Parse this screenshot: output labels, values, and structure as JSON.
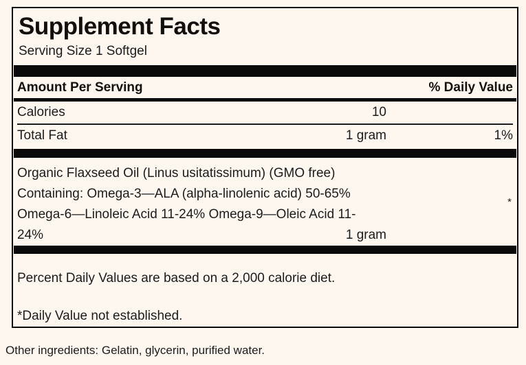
{
  "panel": {
    "title": "Supplement Facts",
    "serving_size": "Serving Size 1 Softgel",
    "header": {
      "amount_per_serving": "Amount Per Serving",
      "daily_value": "% Daily Value"
    },
    "rows": [
      {
        "name": "Calories",
        "amount": "10",
        "dv": ""
      },
      {
        "name": "Total Fat",
        "amount": "1 gram",
        "dv": "1%"
      }
    ],
    "ingredient_block": {
      "line1": "Organic Flaxseed Oil (Linus usitatissimum) (GMO free)",
      "line2": "Containing: Omega-3—ALA (alpha-linolenic acid) 50-65%",
      "line3": "Omega-6—Linoleic Acid 11-24% Omega-9—Oleic Acid 11-",
      "line4_left": "24%",
      "line4_amount": "1 gram",
      "dv_marker": "*"
    },
    "footnotes": {
      "percent_dv": "Percent Daily Values are based on a 2,000 calorie diet.",
      "not_established": "*Daily Value not established."
    }
  },
  "other_ingredients": "Other ingredients: Gelatin, glycerin, purified water.",
  "colors": {
    "background": "#fdf7f0",
    "text": "#1c1c1c",
    "bar": "#0a0a0a",
    "border": "#0b0b0b"
  }
}
